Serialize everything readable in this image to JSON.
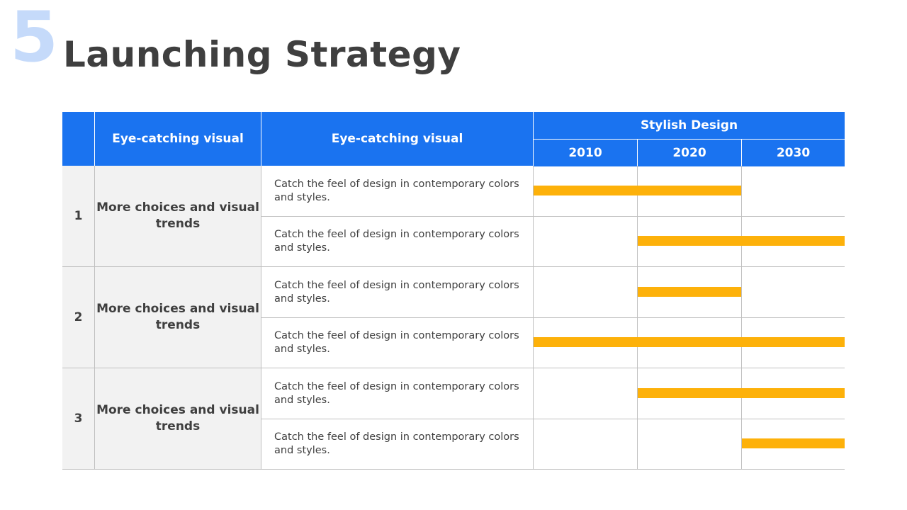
{
  "slide": {
    "number": "5",
    "title": "Launching Strategy"
  },
  "table": {
    "headers": {
      "col_group": "Eye-catching visual",
      "col_desc": "Eye-catching visual",
      "timeline_title": "Stylish Design",
      "years": [
        "2010",
        "2020",
        "2030"
      ]
    },
    "groups": [
      {
        "number": "1",
        "label": "More choices and visual trends",
        "rows": [
          {
            "description": "Catch the feel of design in contemporary colors and styles.",
            "bar": {
              "start_col": 0,
              "span_cols": 2
            }
          },
          {
            "description": "Catch the feel of design in contemporary colors and styles.",
            "bar": {
              "start_col": 1,
              "span_cols": 2
            }
          }
        ]
      },
      {
        "number": "2",
        "label": "More choices and visual trends",
        "rows": [
          {
            "description": "Catch the feel of design in contemporary colors and styles.",
            "bar": {
              "start_col": 1,
              "span_cols": 1
            }
          },
          {
            "description": "Catch the feel of design in contemporary colors and styles.",
            "bar": {
              "start_col": 0,
              "span_cols": 3
            }
          }
        ]
      },
      {
        "number": "3",
        "label": "More choices and visual trends",
        "rows": [
          {
            "description": "Catch the feel of design in contemporary colors and styles.",
            "bar": {
              "start_col": 1,
              "span_cols": 2
            }
          },
          {
            "description": "Catch the feel of design in contemporary colors and styles.",
            "bar": {
              "start_col": 2,
              "span_cols": 1
            }
          }
        ]
      }
    ]
  },
  "colors": {
    "header_bg": "#1a73f0",
    "bar": "#fdb10a",
    "number_accent": "#c5dafa",
    "title": "#3f3f3f"
  }
}
